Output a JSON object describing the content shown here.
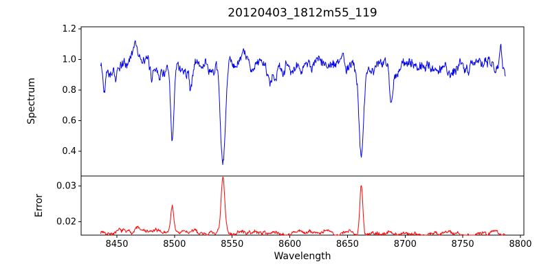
{
  "title": "20120403_1812m55_119",
  "chart_data": [
    {
      "type": "line",
      "name": "spectrum",
      "ylabel": "Spectrum",
      "color": "#0000ee",
      "xlim": [
        8419,
        8803
      ],
      "ylim": [
        0.238,
        1.213
      ],
      "yticks": [
        0.4,
        0.6,
        0.8,
        1.0,
        1.2
      ],
      "yticklabels": [
        "0.4",
        "0.6",
        "0.8",
        "1.0",
        "1.2"
      ],
      "x_start": 8436,
      "x_end": 8787,
      "n_points": 900,
      "seed": 42,
      "baseline": 0.955,
      "baseline_slope": 0,
      "walk_step": 0.05,
      "noise_amplitude": 0.03,
      "absorption_lines": [
        {
          "center": 8439,
          "depth": 0.17,
          "width": 1.0
        },
        {
          "center": 8449,
          "depth": 0.09,
          "width": 1.0
        },
        {
          "center": 8480,
          "depth": 0.08,
          "width": 1.0
        },
        {
          "center": 8498,
          "depth": 0.5,
          "width": 1.5
        },
        {
          "center": 8514,
          "depth": 0.17,
          "width": 1.1
        },
        {
          "center": 8542,
          "depth": 0.65,
          "width": 2.2
        },
        {
          "center": 8583,
          "depth": 0.07,
          "width": 1.2
        },
        {
          "center": 8662,
          "depth": 0.59,
          "width": 1.9
        },
        {
          "center": 8688,
          "depth": 0.2,
          "width": 1.2
        }
      ],
      "emission_bumps": [
        {
          "center": 8466,
          "height": 0.17,
          "width": 3.0
        },
        {
          "center": 8783,
          "height": 0.2,
          "width": 1.0
        }
      ]
    },
    {
      "type": "line",
      "name": "error",
      "ylabel": "Error",
      "xlabel": "Wavelength",
      "color": "#ff0000",
      "xlim": [
        8419,
        8803
      ],
      "ylim": [
        0.01625,
        0.0328
      ],
      "yticks": [
        0.02,
        0.03
      ],
      "yticklabels": [
        "0.02",
        "0.03"
      ],
      "xticks": [
        8450,
        8500,
        8550,
        8600,
        8650,
        8700,
        8750,
        8800
      ],
      "xticklabels": [
        "8450",
        "8500",
        "8550",
        "8600",
        "8650",
        "8700",
        "8750",
        "8800"
      ],
      "x_start": 8436,
      "x_end": 8787,
      "n_points": 900,
      "seed": 7,
      "baseline": 0.0172,
      "baseline_slope": -0.0006,
      "walk_step": 0.0007,
      "noise_amplitude": 0.0006,
      "spikes": [
        {
          "center": 8468,
          "height": 0.0012,
          "width": 2.5
        },
        {
          "center": 8498,
          "height": 0.0078,
          "width": 1.2
        },
        {
          "center": 8542,
          "height": 0.015,
          "width": 1.5
        },
        {
          "center": 8662,
          "height": 0.014,
          "width": 1.3
        },
        {
          "center": 8779,
          "height": 0.0012,
          "width": 1.5
        }
      ]
    }
  ]
}
